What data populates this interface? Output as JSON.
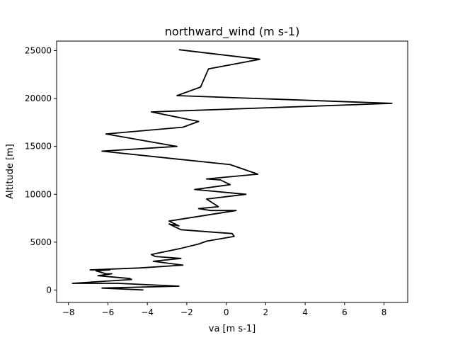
{
  "chart_data": {
    "type": "line",
    "title": "northward_wind (m s-1)",
    "xlabel": "va [m s-1]",
    "ylabel": "Altitude [m]",
    "xlim": [
      -8.6,
      9.2
    ],
    "ylim": [
      -1300,
      26000
    ],
    "x_ticks": [
      -8,
      -6,
      -4,
      -2,
      0,
      2,
      4,
      6,
      8
    ],
    "x_tick_labels": [
      "−8",
      "−6",
      "−4",
      "−2",
      "0",
      "2",
      "4",
      "6",
      "8"
    ],
    "y_ticks": [
      0,
      5000,
      10000,
      15000,
      20000,
      25000
    ],
    "y_tick_labels": [
      "0",
      "5000",
      "10000",
      "15000",
      "20000",
      "25000"
    ],
    "grid": false,
    "legend": "none",
    "line_color": "#000000",
    "series": [
      {
        "x": [
          -4.2,
          -6.3,
          -2.4,
          -5.5,
          -7.8,
          -4.8,
          -4.9,
          -6.5,
          -5.8,
          -6.1,
          -6.6,
          -5.9,
          -6.9,
          -4.4,
          -2.2,
          -3.7,
          -2.3,
          -3.6,
          -3.8,
          -3.6,
          -2.4,
          -1.4,
          -1.0,
          0.4,
          0.3,
          -0.4,
          -2.3,
          -2.9,
          -2.4,
          -2.9,
          0.5,
          -0.4,
          -0.8,
          -1.4,
          -0.4,
          -1.0,
          1.0,
          -1.6,
          0.2,
          -0.3,
          -1.0,
          1.6,
          0.2,
          -6.3,
          -2.5,
          -6.1,
          -2.2,
          -1.4,
          -3.8,
          8.4,
          -2.5,
          -1.3,
          -0.9,
          1.7,
          -2.4
        ],
        "y": [
          0,
          200,
          400,
          700,
          700,
          1100,
          1200,
          1500,
          1700,
          1700,
          2000,
          2100,
          2100,
          2300,
          2600,
          3000,
          3300,
          3500,
          3700,
          3800,
          4300,
          4800,
          5100,
          5600,
          5900,
          6000,
          6300,
          6900,
          6700,
          7200,
          8300,
          8300,
          8300,
          8500,
          8700,
          9500,
          10000,
          10500,
          11000,
          11500,
          11600,
          12100,
          13100,
          14500,
          15000,
          16300,
          17000,
          17600,
          18600,
          19500,
          20300,
          21200,
          23100,
          24100,
          25100
        ]
      }
    ]
  }
}
